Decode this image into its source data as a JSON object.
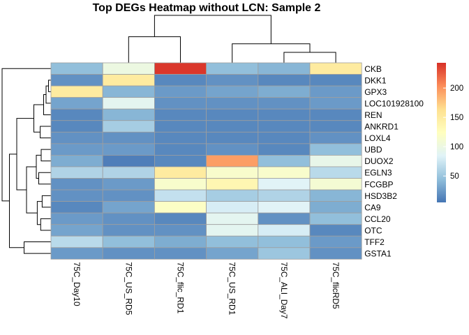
{
  "chart_data": {
    "type": "heatmap",
    "title": "Top DEGs Heatmap without LCN: Sample 2",
    "columns": [
      "75C_Day10",
      "75C_US_RD5",
      "75C_flic_RD1",
      "75C_US_RD1",
      "75C_ALI_Day7",
      "75C_flicRD5"
    ],
    "rows": [
      "CKB",
      "DKK1",
      "GPX3",
      "LOC101928100",
      "REN",
      "ANKRD1",
      "LOXL4",
      "UBD",
      "DUOX2",
      "EGLN3",
      "FCGBP",
      "HSD3B2",
      "CA9",
      "CCL20",
      "OTC",
      "TFF2",
      "GSTA1"
    ],
    "values": [
      [
        45,
        100,
        240,
        45,
        40,
        150
      ],
      [
        20,
        150,
        15,
        20,
        15,
        15
      ],
      [
        150,
        40,
        25,
        30,
        35,
        25
      ],
      [
        30,
        90,
        20,
        20,
        20,
        25
      ],
      [
        15,
        40,
        15,
        15,
        15,
        15
      ],
      [
        15,
        55,
        15,
        15,
        15,
        15
      ],
      [
        20,
        20,
        15,
        15,
        15,
        20
      ],
      [
        25,
        25,
        15,
        20,
        15,
        45
      ],
      [
        35,
        10,
        15,
        195,
        45,
        95
      ],
      [
        60,
        60,
        150,
        115,
        115,
        65
      ],
      [
        20,
        25,
        115,
        135,
        85,
        110
      ],
      [
        20,
        20,
        70,
        55,
        60,
        40
      ],
      [
        15,
        30,
        120,
        80,
        85,
        35
      ],
      [
        25,
        20,
        15,
        90,
        20,
        45
      ],
      [
        30,
        20,
        20,
        90,
        80,
        15
      ],
      [
        65,
        45,
        35,
        45,
        45,
        25
      ],
      [
        25,
        20,
        20,
        30,
        50,
        20
      ]
    ],
    "legend": {
      "ticks": [
        50,
        100,
        150,
        200
      ],
      "min": 5,
      "max": 243,
      "color_stops": [
        "#4575B4",
        "#91BFDB",
        "#E0F3F8",
        "#FFFFBF",
        "#FEE090",
        "#FC8D59",
        "#D73027"
      ]
    },
    "col_dendrogram": [
      {
        "a": 1,
        "b": 2,
        "h": 0.55
      },
      {
        "a": 4,
        "b": 5,
        "h": 0.22
      },
      {
        "a": 3,
        "b": 4.5,
        "h": 0.4
      },
      {
        "a": 1.5,
        "b": 3.75,
        "h": 1.0
      }
    ],
    "row_dendrogram": [
      {
        "a": 1,
        "b": 2,
        "h": 0.05
      },
      {
        "a": 1.5,
        "b": 3,
        "h": 0.1
      },
      {
        "a": 2.25,
        "b": 4,
        "h": 0.15
      },
      {
        "a": 5,
        "b": 6,
        "h": 0.22
      },
      {
        "a": 3.125,
        "b": 5.5,
        "h": 0.35
      },
      {
        "a": 7,
        "b": 8,
        "h": 0.2
      },
      {
        "a": 9,
        "b": 10,
        "h": 0.25
      },
      {
        "a": 7.5,
        "b": 9.5,
        "h": 0.3
      },
      {
        "a": 11,
        "b": 12,
        "h": 0.18
      },
      {
        "a": 13,
        "b": 14,
        "h": 0.21
      },
      {
        "a": 11.5,
        "b": 13.5,
        "h": 0.28
      },
      {
        "a": 8.5,
        "b": 12.5,
        "h": 0.5
      },
      {
        "a": 4.3125,
        "b": 10.5,
        "h": 0.7
      },
      {
        "a": 15,
        "b": 16,
        "h": 0.55
      },
      {
        "a": 7.40625,
        "b": 15.5,
        "h": 0.85
      },
      {
        "a": 0,
        "b": 11.453125,
        "h": 1.0
      }
    ]
  }
}
